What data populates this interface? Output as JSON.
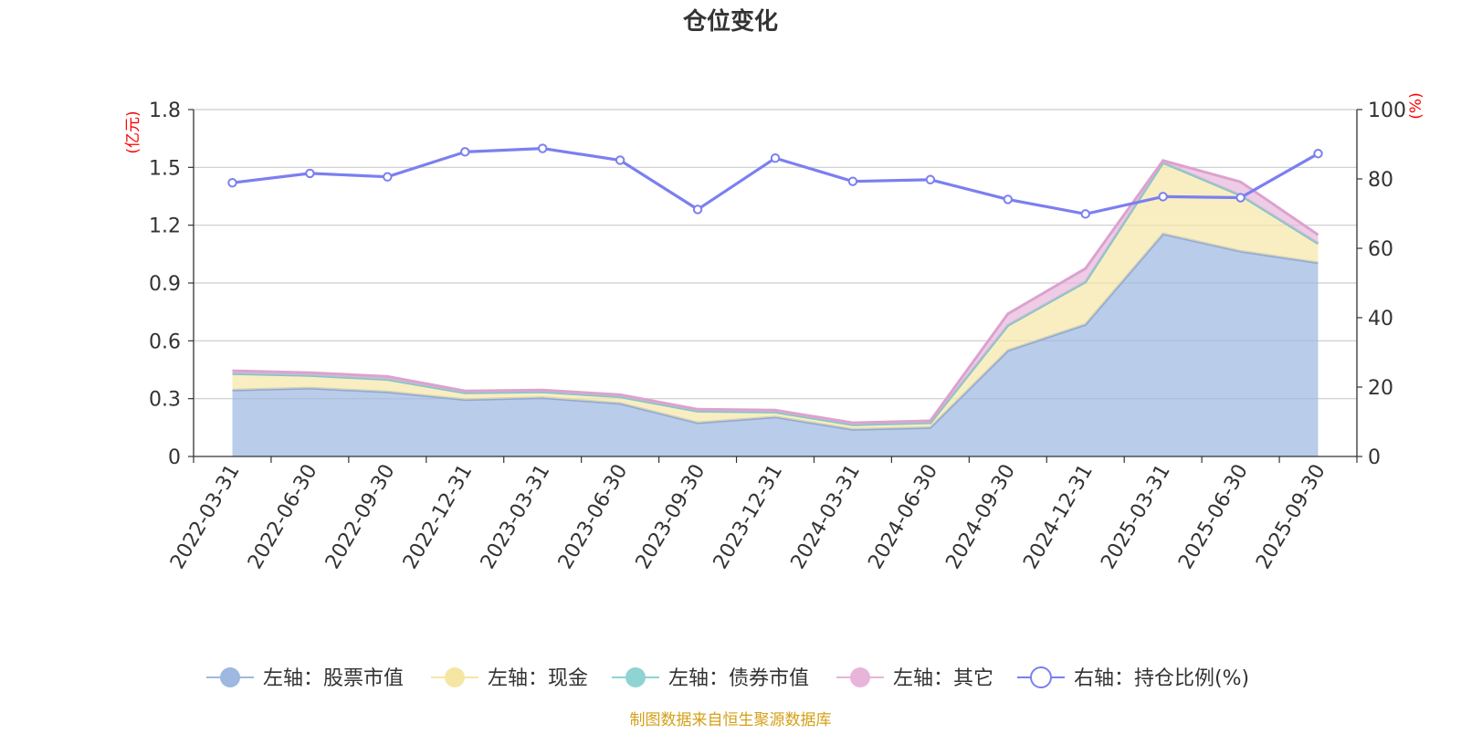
{
  "chart_data": {
    "type": "area",
    "title": "仓位变化",
    "left_axis_unit": "(亿元)",
    "right_axis_unit": "(%)",
    "categories": [
      "2022-03-31",
      "2022-06-30",
      "2022-09-30",
      "2022-12-31",
      "2023-03-31",
      "2023-06-30",
      "2023-09-30",
      "2023-12-31",
      "2024-03-31",
      "2024-06-30",
      "2024-09-30",
      "2024-12-31",
      "2025-03-31",
      "2025-06-30",
      "2025-09-30"
    ],
    "ylim_left": [
      0,
      1.8
    ],
    "left_ticks": [
      "0",
      "0.3",
      "0.6",
      "0.9",
      "1.2",
      "1.5",
      "1.8"
    ],
    "ylim_right": [
      0,
      100
    ],
    "right_ticks": [
      "0",
      "20",
      "40",
      "60",
      "80",
      "100"
    ],
    "grid": true,
    "legend_position": "bottom",
    "series": [
      {
        "name": "左轴：股票市值",
        "axis": "left",
        "stack": "total",
        "color": "#9eb8e0",
        "values": [
          0.345,
          0.355,
          0.335,
          0.295,
          0.305,
          0.275,
          0.175,
          0.205,
          0.14,
          0.15,
          0.55,
          0.685,
          1.155,
          1.065,
          1.005
        ]
      },
      {
        "name": "左轴：现金",
        "axis": "left",
        "stack": "total",
        "color": "#f6e6a4",
        "values": [
          0.085,
          0.065,
          0.065,
          0.035,
          0.03,
          0.035,
          0.06,
          0.025,
          0.025,
          0.025,
          0.13,
          0.22,
          0.37,
          0.29,
          0.1
        ]
      },
      {
        "name": "左轴：债券市值",
        "axis": "left",
        "stack": "total",
        "color": "#8fd3d3",
        "values": [
          0,
          0,
          0,
          0,
          0,
          0,
          0,
          0,
          0,
          0,
          0,
          0,
          0,
          0,
          0
        ]
      },
      {
        "name": "左轴：其它",
        "axis": "left",
        "stack": "total",
        "color": "#e8b4da",
        "values": [
          0.015,
          0.015,
          0.015,
          0.01,
          0.01,
          0.01,
          0.01,
          0.01,
          0.01,
          0.01,
          0.06,
          0.07,
          0.01,
          0.07,
          0.045
        ]
      },
      {
        "name": "右轴：持仓比例(%)",
        "axis": "right",
        "type": "line",
        "color": "#7b7ff0",
        "values": [
          78.9,
          81.6,
          80.6,
          87.8,
          88.8,
          85.4,
          71.2,
          86.0,
          79.3,
          79.8,
          74.1,
          69.9,
          74.9,
          74.6,
          87.3
        ]
      }
    ],
    "source_note": "制图数据来自恒生聚源数据库"
  }
}
